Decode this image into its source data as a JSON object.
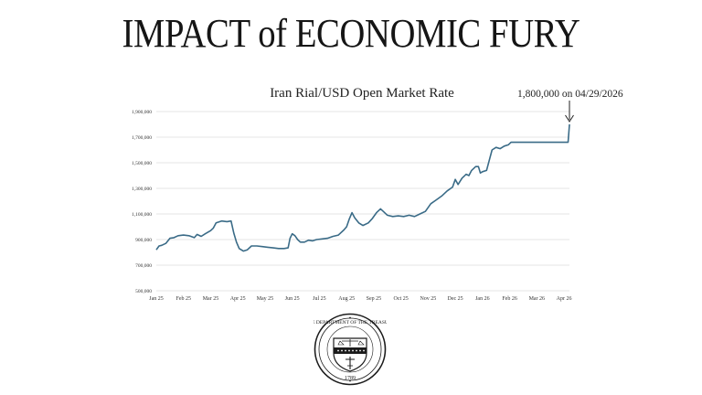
{
  "headline": "IMPACT of ECONOMIC FURY",
  "colors": {
    "line": "#3a6b87",
    "grid": "#dcdcdc",
    "text": "#151515"
  },
  "chart_data": {
    "type": "line",
    "title": "Iran Rial/USD Open Market Rate",
    "xlabel": "",
    "ylabel": "",
    "x_tick_labels": [
      "Jan 25",
      "Feb 25",
      "Mar 25",
      "Apr 25",
      "May 25",
      "Jun 25",
      "Jul 25",
      "Aug 25",
      "Sep 25",
      "Oct 25",
      "Nov 25",
      "Dec 25",
      "Jan 26",
      "Feb 26",
      "Mar 26",
      "Apr 26"
    ],
    "y_ticks": [
      500000,
      700000,
      900000,
      1100000,
      1300000,
      1500000,
      1700000,
      1900000
    ],
    "y_tick_labels": [
      "500,000",
      "700,000",
      "900,000",
      "1,100,000",
      "1,300,000",
      "1,500,000",
      "1,700,000",
      "1,900,000"
    ],
    "ylim": [
      500000,
      1900000
    ],
    "grid": "horizontal",
    "annotation": {
      "text": "1,800,000 on 04/29/2026"
    },
    "series": [
      {
        "values": [
          [
            0.0,
            820000
          ],
          [
            0.1,
            850000
          ],
          [
            0.2,
            855000
          ],
          [
            0.35,
            870000
          ],
          [
            0.5,
            910000
          ],
          [
            0.65,
            915000
          ],
          [
            0.8,
            930000
          ],
          [
            1.0,
            935000
          ],
          [
            1.2,
            930000
          ],
          [
            1.4,
            915000
          ],
          [
            1.5,
            940000
          ],
          [
            1.65,
            925000
          ],
          [
            1.8,
            945000
          ],
          [
            2.0,
            970000
          ],
          [
            2.1,
            990000
          ],
          [
            2.2,
            1030000
          ],
          [
            2.4,
            1045000
          ],
          [
            2.6,
            1040000
          ],
          [
            2.75,
            1045000
          ],
          [
            2.85,
            950000
          ],
          [
            2.95,
            880000
          ],
          [
            3.05,
            830000
          ],
          [
            3.2,
            810000
          ],
          [
            3.35,
            820000
          ],
          [
            3.5,
            850000
          ],
          [
            3.7,
            850000
          ],
          [
            3.9,
            845000
          ],
          [
            4.1,
            840000
          ],
          [
            4.3,
            835000
          ],
          [
            4.5,
            830000
          ],
          [
            4.7,
            830000
          ],
          [
            4.85,
            835000
          ],
          [
            4.92,
            910000
          ],
          [
            5.0,
            945000
          ],
          [
            5.1,
            930000
          ],
          [
            5.2,
            900000
          ],
          [
            5.3,
            880000
          ],
          [
            5.45,
            880000
          ],
          [
            5.6,
            895000
          ],
          [
            5.75,
            890000
          ],
          [
            5.9,
            900000
          ],
          [
            6.1,
            905000
          ],
          [
            6.3,
            910000
          ],
          [
            6.5,
            925000
          ],
          [
            6.7,
            935000
          ],
          [
            6.9,
            975000
          ],
          [
            7.0,
            1000000
          ],
          [
            7.1,
            1060000
          ],
          [
            7.2,
            1110000
          ],
          [
            7.3,
            1070000
          ],
          [
            7.45,
            1030000
          ],
          [
            7.6,
            1010000
          ],
          [
            7.8,
            1030000
          ],
          [
            7.95,
            1065000
          ],
          [
            8.1,
            1110000
          ],
          [
            8.25,
            1140000
          ],
          [
            8.35,
            1120000
          ],
          [
            8.5,
            1090000
          ],
          [
            8.7,
            1080000
          ],
          [
            8.9,
            1085000
          ],
          [
            9.1,
            1080000
          ],
          [
            9.3,
            1090000
          ],
          [
            9.5,
            1080000
          ],
          [
            9.7,
            1100000
          ],
          [
            9.9,
            1120000
          ],
          [
            10.1,
            1180000
          ],
          [
            10.3,
            1210000
          ],
          [
            10.5,
            1240000
          ],
          [
            10.7,
            1280000
          ],
          [
            10.9,
            1310000
          ],
          [
            11.0,
            1370000
          ],
          [
            11.1,
            1330000
          ],
          [
            11.25,
            1380000
          ],
          [
            11.4,
            1410000
          ],
          [
            11.5,
            1400000
          ],
          [
            11.6,
            1440000
          ],
          [
            11.75,
            1470000
          ],
          [
            11.85,
            1470000
          ],
          [
            11.92,
            1420000
          ],
          [
            12.0,
            1430000
          ],
          [
            12.15,
            1440000
          ],
          [
            12.25,
            1520000
          ],
          [
            12.35,
            1600000
          ],
          [
            12.5,
            1620000
          ],
          [
            12.65,
            1610000
          ],
          [
            12.8,
            1630000
          ],
          [
            12.95,
            1640000
          ],
          [
            13.05,
            1660000
          ],
          [
            13.2,
            1660000
          ],
          [
            13.5,
            1660000
          ],
          [
            14.0,
            1660000
          ],
          [
            14.5,
            1660000
          ],
          [
            15.0,
            1660000
          ],
          [
            15.15,
            1660000
          ],
          [
            15.2,
            1800000
          ]
        ]
      }
    ]
  }
}
